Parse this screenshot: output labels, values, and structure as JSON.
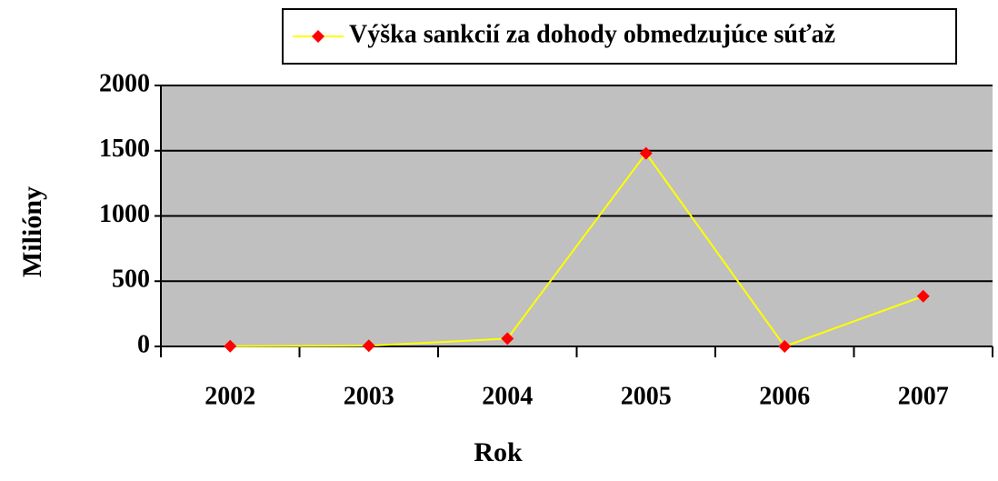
{
  "chart_data": {
    "type": "line",
    "categories": [
      "2002",
      "2003",
      "2004",
      "2005",
      "2006",
      "2007"
    ],
    "series": [
      {
        "name": "Výška sankcií za dohody obmedzujúce súťaž",
        "color": "#ffff00",
        "marker_color": "#ff0000",
        "values": [
          2,
          5,
          60,
          1480,
          0,
          385
        ]
      }
    ],
    "ylim": [
      0,
      2000
    ],
    "yticks": [
      0,
      500,
      1000,
      1500,
      2000
    ],
    "y_label": "Milióny",
    "x_label": "Rok",
    "grid": true,
    "legend": "top"
  }
}
